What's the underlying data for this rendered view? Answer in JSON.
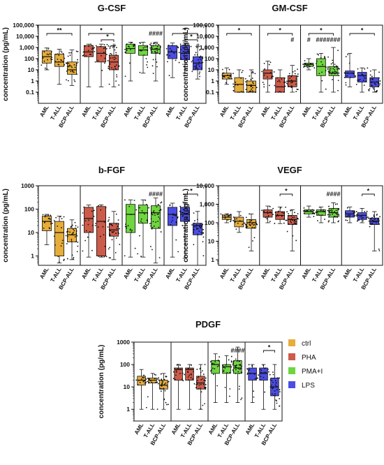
{
  "groups": [
    "AML",
    "T-ALL",
    "BCP-ALL"
  ],
  "colors": {
    "ctrl": "#e6ad3a",
    "PHA": "#cc5b4a",
    "PMA+I": "#6fd63f",
    "LPS": "#4b4de3"
  },
  "legend": [
    {
      "name": "ctrl",
      "color": "#e6ad3a"
    },
    {
      "name": "PHA",
      "color": "#cc5b4a"
    },
    {
      "name": "PMA+I",
      "color": "#6fd63f"
    },
    {
      "name": "LPS",
      "color": "#4b4de3"
    }
  ],
  "chart_data": [
    {
      "type": "box",
      "title": "G-CSF",
      "ylabel": "concentration (pg/mL)",
      "yscale": "log",
      "ylim": [
        0.01,
        100000
      ],
      "yticks": [
        0.1,
        1,
        10,
        100,
        1000,
        10000,
        100000
      ],
      "yticklabels": [
        "0.1",
        "1",
        "10",
        "100",
        "1,000",
        "10,000",
        "100,000"
      ],
      "conditions": [
        "ctrl",
        "PHA",
        "PMA+I",
        "LPS"
      ],
      "boxes": [
        [
          {
            "min": 10,
            "q1": 40,
            "median": 150,
            "q3": 500,
            "max": 900
          },
          {
            "min": 0.5,
            "q1": 20,
            "median": 50,
            "q3": 250,
            "max": 700
          },
          {
            "min": 0.4,
            "q1": 4,
            "median": 10,
            "q3": 50,
            "max": 600
          }
        ],
        [
          {
            "min": 0.3,
            "q1": 150,
            "median": 400,
            "q3": 1500,
            "max": 2000
          },
          {
            "min": 0.3,
            "q1": 50,
            "median": 300,
            "q3": 1200,
            "max": 2000
          },
          {
            "min": 0.3,
            "q1": 10,
            "median": 50,
            "q3": 200,
            "max": 1500
          }
        ],
        [
          {
            "min": 1,
            "q1": 300,
            "median": 800,
            "q3": 2000,
            "max": 3000
          },
          {
            "min": 5,
            "q1": 200,
            "median": 600,
            "q3": 1500,
            "max": 3000
          },
          {
            "min": 1,
            "q1": 300,
            "median": 700,
            "q3": 1500,
            "max": 3000
          }
        ],
        [
          {
            "min": 2,
            "q1": 100,
            "median": 400,
            "q3": 1500,
            "max": 2500
          },
          {
            "min": 5,
            "q1": 80,
            "median": 300,
            "q3": 1500,
            "max": 2500
          },
          {
            "min": 1.5,
            "q1": 10,
            "median": 40,
            "q3": 150,
            "max": 1200
          }
        ]
      ],
      "annotations": [
        {
          "cond": 0,
          "from": 0,
          "to": 2,
          "level": 0,
          "text": "**"
        },
        {
          "cond": 1,
          "from": 0,
          "to": 2,
          "level": 0,
          "text": "*"
        },
        {
          "cond": 1,
          "from": 1,
          "to": 2,
          "level": 1,
          "text": "*"
        },
        {
          "cond": 1,
          "at": 2,
          "level": 2,
          "text": "#"
        },
        {
          "cond": 2,
          "at": 2,
          "level": 0,
          "text": "####"
        },
        {
          "cond": 3,
          "from": 0,
          "to": 2,
          "level": 0,
          "text": "*"
        },
        {
          "cond": 3,
          "from": 1,
          "to": 2,
          "level": 1,
          "text": "*"
        },
        {
          "cond": 3,
          "at": 2,
          "level": 2,
          "text": "#"
        }
      ]
    },
    {
      "type": "box",
      "title": "GM-CSF",
      "ylabel": "concentration (pg/mL)",
      "yscale": "log",
      "ylim": [
        0.01,
        100000
      ],
      "yticks": [
        0.1,
        1,
        10,
        100,
        1000,
        10000,
        100000
      ],
      "yticklabels": [
        "0.1",
        "1",
        "10",
        "100",
        "1,000",
        "10,000",
        "100,000"
      ],
      "conditions": [
        "ctrl",
        "PHA",
        "PMA+I",
        "LPS"
      ],
      "boxes": [
        [
          {
            "min": 0.5,
            "q1": 1.5,
            "median": 3,
            "q3": 5,
            "max": 15
          },
          {
            "min": 0.1,
            "q1": 0.1,
            "median": 0.5,
            "q3": 2,
            "max": 10
          },
          {
            "min": 0.1,
            "q1": 0.1,
            "median": 0.4,
            "q3": 1,
            "max": 10
          }
        ],
        [
          {
            "min": 0.1,
            "q1": 1.5,
            "median": 5,
            "q3": 10,
            "max": 60
          },
          {
            "min": 0.1,
            "q1": 0.1,
            "median": 0.3,
            "q3": 2,
            "max": 10
          },
          {
            "min": 0.1,
            "q1": 0.3,
            "median": 1,
            "q3": 3,
            "max": 25
          }
        ],
        [
          {
            "min": 10,
            "q1": 20,
            "median": 30,
            "q3": 40,
            "max": 100
          },
          {
            "min": 0.1,
            "q1": 3,
            "median": 20,
            "q3": 100,
            "max": 300
          },
          {
            "min": 0.1,
            "q1": 3,
            "median": 5,
            "q3": 20,
            "max": 1000
          }
        ],
        [
          {
            "min": 0.3,
            "q1": 2,
            "median": 5,
            "q3": 8,
            "max": 300
          },
          {
            "min": 0.1,
            "q1": 0.8,
            "median": 3,
            "q3": 6,
            "max": 15
          },
          {
            "min": 0.1,
            "q1": 0.3,
            "median": 0.8,
            "q3": 2,
            "max": 10
          }
        ]
      ],
      "annotations": [
        {
          "cond": 0,
          "from": 0,
          "to": 2,
          "level": 0,
          "text": "*"
        },
        {
          "cond": 1,
          "from": 0,
          "to": 2,
          "level": 0,
          "text": "*"
        },
        {
          "cond": 1,
          "at": 2,
          "level": 1,
          "text": "#"
        },
        {
          "cond": 2,
          "from": 0,
          "to": 2,
          "level": 0,
          "text": "*"
        },
        {
          "cond": 2,
          "at": 0,
          "level": 1,
          "text": "#"
        },
        {
          "cond": 2,
          "at": 1,
          "level": 1,
          "text": "###"
        },
        {
          "cond": 2,
          "at": 2,
          "level": 1,
          "text": "####"
        },
        {
          "cond": 3,
          "from": 0,
          "to": 2,
          "level": 0,
          "text": "*"
        }
      ]
    },
    {
      "type": "box",
      "title": "b-FGF",
      "ylabel": "concentration (pg/mL)",
      "yscale": "log",
      "ylim": [
        0.4,
        1000
      ],
      "yticks": [
        1,
        10,
        100,
        1000
      ],
      "yticklabels": [
        "1",
        "10",
        "100",
        "1000"
      ],
      "conditions": [
        "ctrl",
        "PHA",
        "PMA+I",
        "LPS"
      ],
      "boxes": [
        [
          {
            "min": 3,
            "q1": 12,
            "median": 30,
            "q3": 50,
            "max": 60
          },
          {
            "min": 0.5,
            "q1": 1,
            "median": 10,
            "q3": 30,
            "max": 50
          },
          {
            "min": 0.7,
            "q1": 4,
            "median": 8,
            "q3": 15,
            "max": 35
          }
        ],
        [
          {
            "min": 0.9,
            "q1": 10,
            "median": 40,
            "q3": 120,
            "max": 150
          },
          {
            "min": 0.9,
            "q1": 1,
            "median": 30,
            "q3": 130,
            "max": 150
          },
          {
            "min": 0.7,
            "q1": 7,
            "median": 13,
            "q3": 25,
            "max": 80
          }
        ],
        [
          {
            "min": 0.9,
            "q1": 10,
            "median": 60,
            "q3": 160,
            "max": 250
          },
          {
            "min": 0.9,
            "q1": 25,
            "median": 70,
            "q3": 150,
            "max": 250
          },
          {
            "min": 0.5,
            "q1": 15,
            "median": 70,
            "q3": 140,
            "max": 300
          }
        ],
        [
          {
            "min": 0.9,
            "q1": 20,
            "median": 60,
            "q3": 120,
            "max": 180
          },
          {
            "min": 0.8,
            "q1": 30,
            "median": 60,
            "q3": 120,
            "max": 180
          },
          {
            "min": 0.4,
            "q1": 8,
            "median": 20,
            "q3": 25,
            "max": 80
          }
        ]
      ],
      "annotations": [
        {
          "cond": 2,
          "at": 2,
          "level": 0,
          "text": "####"
        },
        {
          "cond": 3,
          "from": 1,
          "to": 2,
          "level": 0,
          "text": "*"
        }
      ]
    },
    {
      "type": "box",
      "title": "VEGF",
      "ylabel": "concentration (pg/mL)",
      "yscale": "log",
      "ylim": [
        0.5,
        10000
      ],
      "yticks": [
        1,
        10,
        100,
        1000,
        10000
      ],
      "yticklabels": [
        "1",
        "10",
        "100",
        "1,000",
        "10,000"
      ],
      "conditions": [
        "ctrl",
        "PHA",
        "PMA+I",
        "LPS"
      ],
      "boxes": [
        [
          {
            "min": 100,
            "q1": 150,
            "median": 200,
            "q3": 260,
            "max": 300
          },
          {
            "min": 30,
            "q1": 60,
            "median": 120,
            "q3": 200,
            "max": 400
          },
          {
            "min": 3,
            "q1": 50,
            "median": 100,
            "q3": 150,
            "max": 300
          }
        ],
        [
          {
            "min": 100,
            "q1": 200,
            "median": 350,
            "q3": 500,
            "max": 800
          },
          {
            "min": 90,
            "q1": 150,
            "median": 250,
            "q3": 400,
            "max": 700
          },
          {
            "min": 3,
            "q1": 80,
            "median": 150,
            "q3": 250,
            "max": 500
          }
        ],
        [
          {
            "min": 200,
            "q1": 300,
            "median": 400,
            "q3": 500,
            "max": 800
          },
          {
            "min": 100,
            "q1": 250,
            "median": 400,
            "q3": 500,
            "max": 700
          },
          {
            "min": 100,
            "q1": 200,
            "median": 350,
            "q3": 600,
            "max": 1200
          }
        ],
        [
          {
            "min": 100,
            "q1": 200,
            "median": 300,
            "q3": 450,
            "max": 700
          },
          {
            "min": 100,
            "q1": 150,
            "median": 250,
            "q3": 350,
            "max": 600
          },
          {
            "min": 3,
            "q1": 80,
            "median": 120,
            "q3": 180,
            "max": 400
          }
        ]
      ],
      "annotations": [
        {
          "cond": 1,
          "from": 1,
          "to": 2,
          "level": 0,
          "text": "*"
        },
        {
          "cond": 2,
          "at": 2,
          "level": 0,
          "text": "####"
        },
        {
          "cond": 3,
          "from": 1,
          "to": 2,
          "level": 0,
          "text": "*"
        }
      ]
    },
    {
      "type": "box",
      "title": "PDGF",
      "ylabel": "concentration (pg/mL)",
      "yscale": "log",
      "ylim": [
        0.3,
        1000
      ],
      "yticks": [
        1,
        10,
        100,
        1000
      ],
      "yticklabels": [
        "1",
        "10",
        "100",
        "1000"
      ],
      "conditions": [
        "ctrl",
        "PHA",
        "PMA+I",
        "LPS"
      ],
      "boxes": [
        [
          {
            "min": 1,
            "q1": 12,
            "median": 20,
            "q3": 30,
            "max": 60
          },
          {
            "min": 1,
            "q1": 15,
            "median": 20,
            "q3": 25,
            "max": 40
          },
          {
            "min": 1,
            "q1": 8,
            "median": 12,
            "q3": 20,
            "max": 40
          }
        ],
        [
          {
            "min": 1,
            "q1": 20,
            "median": 60,
            "q3": 70,
            "max": 100
          },
          {
            "min": 1,
            "q1": 20,
            "median": 60,
            "q3": 70,
            "max": 100
          },
          {
            "min": 1,
            "q1": 8,
            "median": 15,
            "q3": 30,
            "max": 100
          }
        ],
        [
          {
            "min": 2,
            "q1": 40,
            "median": 100,
            "q3": 150,
            "max": 300
          },
          {
            "min": 2,
            "q1": 40,
            "median": 80,
            "q3": 100,
            "max": 250
          },
          {
            "min": 2,
            "q1": 40,
            "median": 70,
            "q3": 150,
            "max": 600
          }
        ],
        [
          {
            "min": 2,
            "q1": 20,
            "median": 40,
            "q3": 70,
            "max": 100
          },
          {
            "min": 1,
            "q1": 20,
            "median": 40,
            "q3": 70,
            "max": 100
          },
          {
            "min": 1,
            "q1": 4,
            "median": 10,
            "q3": 25,
            "max": 100
          }
        ]
      ],
      "annotations": [
        {
          "cond": 2,
          "at": 2,
          "level": 0,
          "text": "####"
        },
        {
          "cond": 3,
          "from": 1,
          "to": 2,
          "level": 0,
          "text": "*"
        }
      ]
    }
  ]
}
